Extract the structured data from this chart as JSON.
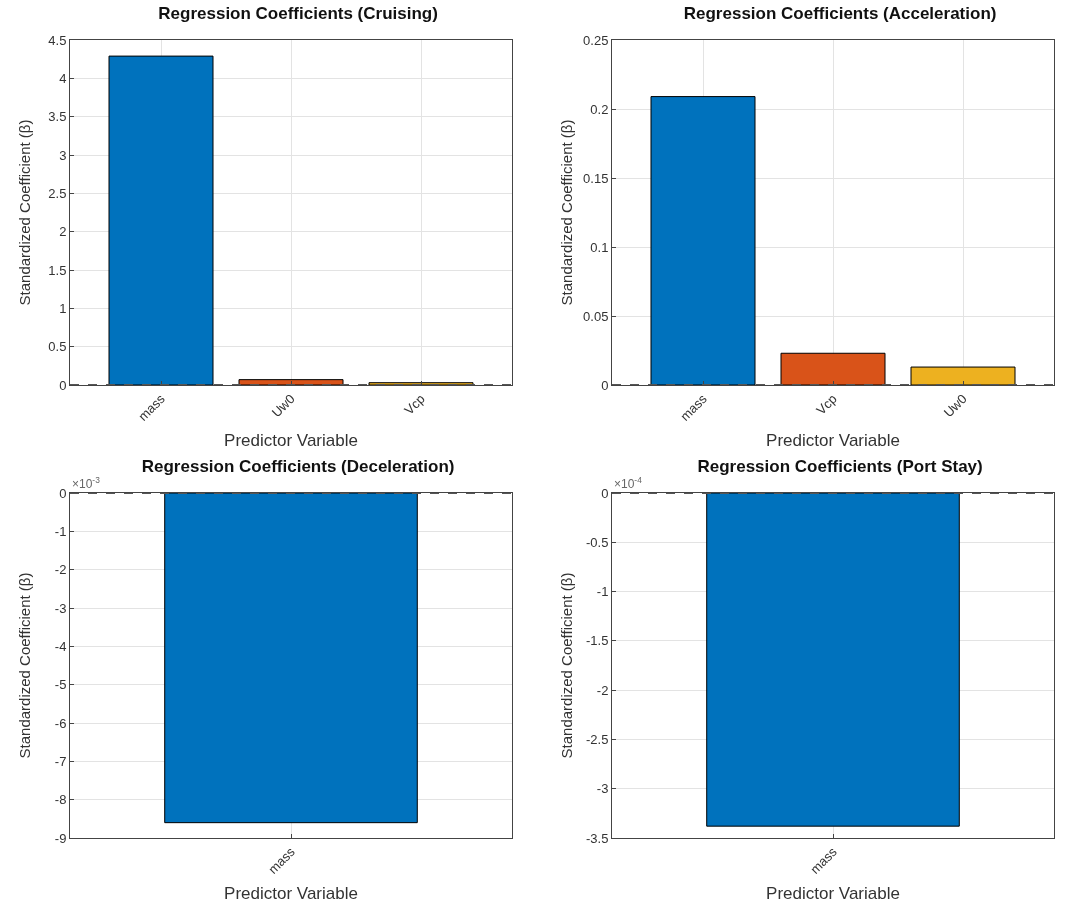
{
  "chart_data": [
    {
      "type": "bar",
      "title": "Regression Coefficients (Cruising)",
      "xlabel": "Predictor Variable",
      "ylabel": "Standardized Coefficient (β)",
      "categories": [
        "mass",
        "Uw0",
        "Vcp"
      ],
      "values": [
        4.29,
        0.07,
        0.03
      ],
      "colors": [
        "#0072bd",
        "#d95319",
        "#edb120"
      ],
      "ylim": [
        0,
        4.5
      ],
      "yticks": [
        0,
        0.5,
        1,
        1.5,
        2,
        2.5,
        3,
        3.5,
        4,
        4.5
      ],
      "grid": true,
      "ref_lines": [
        {
          "axis": "y",
          "value": 0,
          "color": "#555555",
          "line_style": "dashed"
        }
      ]
    },
    {
      "type": "bar",
      "title": "Regression Coefficients (Acceleration)",
      "xlabel": "Predictor Variable",
      "ylabel": "Standardized Coefficient (β)",
      "categories": [
        "mass",
        "Vcp",
        "Uw0"
      ],
      "values": [
        0.209,
        0.023,
        0.013
      ],
      "colors": [
        "#0072bd",
        "#d95319",
        "#edb120"
      ],
      "ylim": [
        0,
        0.25
      ],
      "yticks": [
        0,
        0.05,
        0.1,
        0.15,
        0.2,
        0.25
      ],
      "grid": true,
      "ref_lines": [
        {
          "axis": "y",
          "value": 0,
          "color": "#555555",
          "line_style": "dashed"
        }
      ]
    },
    {
      "type": "bar",
      "title": "Regression Coefficients (Deceleration)",
      "xlabel": "Predictor Variable",
      "ylabel": "Standardized Coefficient (β)",
      "categories": [
        "mass"
      ],
      "values": [
        -8.6
      ],
      "colors": [
        "#0072bd"
      ],
      "ylim": [
        -9,
        0
      ],
      "yticks": [
        -9,
        -8,
        -7,
        -6,
        -5,
        -4,
        -3,
        -2,
        -1,
        0
      ],
      "grid": true,
      "annotations": [
        "×10$^{-3}$"
      ],
      "ref_lines": [
        {
          "axis": "y",
          "value": 0,
          "color": "#555555",
          "line_style": "dashed"
        }
      ]
    },
    {
      "type": "bar",
      "title": "Regression Coefficients (Port Stay)",
      "xlabel": "Predictor Variable",
      "ylabel": "Standardized Coefficient (β)",
      "categories": [
        "mass"
      ],
      "values": [
        -3.38
      ],
      "colors": [
        "#0072bd"
      ],
      "ylim": [
        -3.5,
        0
      ],
      "yticks": [
        -3.5,
        -3,
        -2.5,
        -2,
        -1.5,
        -1,
        -0.5,
        0
      ],
      "grid": true,
      "annotations": [
        "×10$^{-4}$"
      ],
      "ref_lines": [
        {
          "axis": "y",
          "value": 0,
          "color": "#555555",
          "line_style": "dashed"
        }
      ]
    }
  ]
}
